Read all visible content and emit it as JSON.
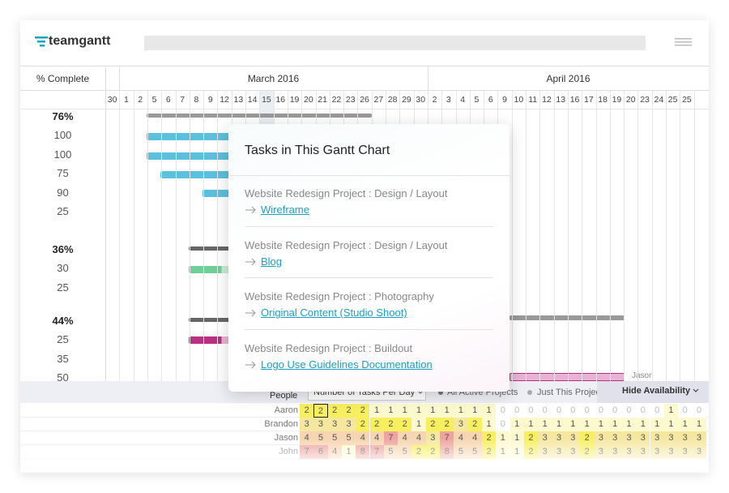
{
  "header": {
    "logo": "teamgantt"
  },
  "gantt": {
    "column_header": "% Complete",
    "months": [
      "March 2016",
      "April 2016"
    ],
    "days": [
      30,
      1,
      2,
      5,
      6,
      7,
      8,
      9,
      12,
      13,
      14,
      15,
      16,
      19,
      20,
      21,
      22,
      23,
      26,
      27,
      28,
      29,
      30,
      2,
      3,
      4,
      5,
      6,
      9,
      10,
      11,
      12,
      13,
      16,
      17,
      18,
      19,
      20,
      23,
      24,
      25,
      25
    ],
    "groups": [
      {
        "summary": "76%",
        "tasks": [
          100,
          100,
          75,
          90,
          25
        ]
      },
      {
        "summary": "36%",
        "tasks": [
          30,
          25
        ]
      },
      {
        "summary": "44%",
        "tasks": [
          25,
          35,
          50
        ]
      }
    ],
    "bar_label": "Jason"
  },
  "popup": {
    "title": "Tasks in This Gantt Chart",
    "items": [
      {
        "project": "Website Redesign Project : Design / Layout",
        "task": "Wireframe"
      },
      {
        "project": "Website Redesign Project : Design / Layout",
        "task": "Blog"
      },
      {
        "project": "Website Redesign Project : Photography",
        "task": "Original Content (Studio Shoot)"
      },
      {
        "project": "Website Redesign Project : Buildout",
        "task": "Logo Use Guidelines Documentation"
      }
    ]
  },
  "availability": {
    "people_label": "People",
    "view_select": "Number of Tasks Per Day",
    "options": [
      "All Active Projects",
      "Just This Projec"
    ],
    "toggle": "Hide Availability",
    "rows": [
      {
        "name": "Aaron",
        "counts": [
          2,
          2,
          2,
          2,
          2,
          1,
          1,
          1,
          1,
          1,
          1,
          1,
          1,
          1,
          0,
          0,
          0,
          0,
          0,
          0,
          0,
          0,
          0,
          0,
          0,
          0,
          1,
          0,
          0
        ]
      },
      {
        "name": "Brandon",
        "counts": [
          3,
          3,
          3,
          3,
          2,
          2,
          2,
          2,
          1,
          2,
          2,
          3,
          2,
          1,
          0,
          1,
          1,
          1,
          1,
          1,
          1,
          1,
          1,
          1,
          1,
          1,
          1,
          1,
          1
        ]
      },
      {
        "name": "Jason",
        "counts": [
          4,
          5,
          5,
          5,
          4,
          4,
          7,
          4,
          4,
          3,
          7,
          4,
          4,
          2,
          1,
          1,
          2,
          3,
          3,
          3,
          2,
          3,
          3,
          3,
          3,
          3,
          3,
          3,
          3
        ]
      },
      {
        "name": "John",
        "counts": [
          7,
          6,
          4,
          1,
          8,
          7,
          5,
          5,
          2,
          2,
          8,
          5,
          5,
          2,
          1,
          1,
          2,
          3,
          3,
          3,
          2,
          3,
          3,
          3,
          3,
          3,
          3,
          3,
          3
        ]
      }
    ]
  }
}
